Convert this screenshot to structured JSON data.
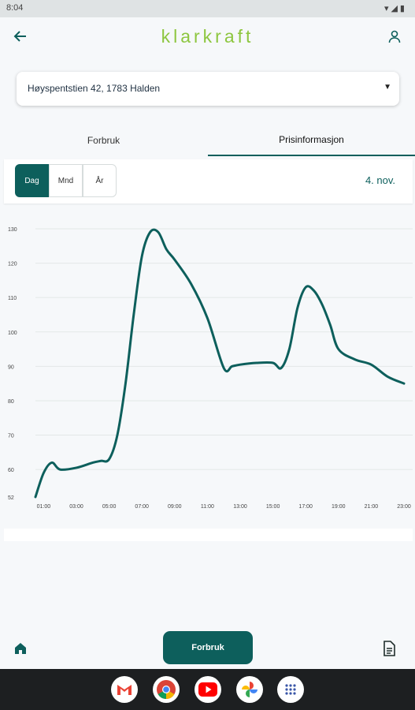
{
  "status_bar": {
    "time": "8:04",
    "icons": "▾◢▮"
  },
  "app_bar": {
    "brand": "klarkraft",
    "back_icon": "arrow-left-icon",
    "profile_icon": "person-icon"
  },
  "address": {
    "value": "Høyspentstien 42, 1783 Halden",
    "caret": "▼"
  },
  "tabs": [
    {
      "label": "Forbruk",
      "active": false
    },
    {
      "label": "Prisinformasjon",
      "active": true
    }
  ],
  "period": {
    "options": [
      "Dag",
      "Mnd",
      "År"
    ],
    "selected": "Dag",
    "date": "4. nov."
  },
  "chart_data": {
    "type": "line",
    "title": "",
    "xlabel": "",
    "ylabel": "",
    "grid": true,
    "ylim": [
      52,
      130
    ],
    "y_ticks": [
      130,
      120,
      110,
      100,
      90,
      80,
      70,
      60,
      52
    ],
    "x_ticks": [
      "01:00",
      "03:00",
      "05:00",
      "07:00",
      "09:00",
      "11:00",
      "13:00",
      "15:00",
      "17:00",
      "19:00",
      "21:00",
      "23:00"
    ],
    "x": [
      0.5,
      1.0,
      1.5,
      2.0,
      3.0,
      4.0,
      4.5,
      5.0,
      5.5,
      6.0,
      6.5,
      7.0,
      7.5,
      8.0,
      8.5,
      9.0,
      10.0,
      11.0,
      12.0,
      12.5,
      13.0,
      14.0,
      15.0,
      15.5,
      16.0,
      16.5,
      17.0,
      17.5,
      18.0,
      18.5,
      19.0,
      20.0,
      21.0,
      22.0,
      23.0
    ],
    "values": [
      52,
      59,
      62,
      60,
      60.5,
      62,
      62.5,
      63,
      70,
      85,
      105,
      122,
      129,
      129,
      124,
      121,
      114,
      104,
      89.5,
      90,
      90.5,
      91,
      91,
      89.5,
      95,
      107,
      113,
      112,
      108,
      102,
      95,
      92,
      90.5,
      87,
      85
    ]
  },
  "bottom_nav": {
    "home_icon": "home-icon",
    "center_label": "Forbruk",
    "doc_icon": "document-icon"
  },
  "taskbar": {
    "apps": [
      "gmail-icon",
      "chrome-icon",
      "youtube-icon",
      "photos-icon",
      "app-drawer-icon"
    ]
  }
}
